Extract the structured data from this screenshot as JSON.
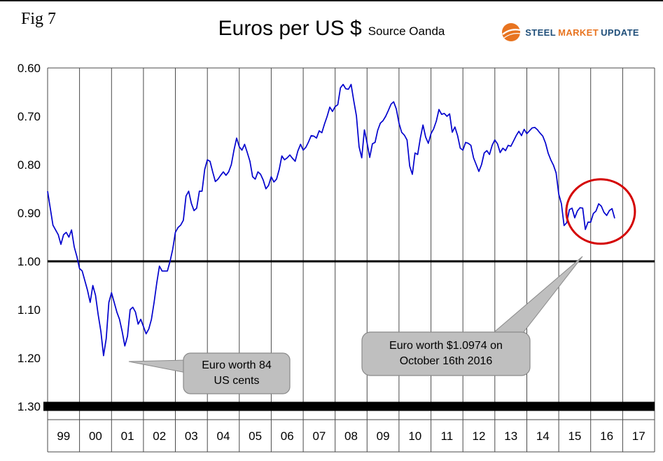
{
  "page": {
    "fig_label": "Fig 7",
    "title": "Euros per US $",
    "subtitle": "Source Oanda",
    "logo": {
      "steel": "STEEL",
      "market": "MARKET",
      "update": "UPDATE",
      "navy": "#1f4e79",
      "orange": "#e87420"
    }
  },
  "chart_data": {
    "type": "line",
    "title": "Euros per US $",
    "subtitle": "Source Oanda",
    "y_axis": {
      "min": 0.6,
      "max": 1.3,
      "inverted_display": true,
      "ticks": [
        "0.60",
        "0.70",
        "0.80",
        "0.90",
        "1.00",
        "1.10",
        "1.20",
        "1.30"
      ]
    },
    "x_axis": {
      "start_year": 1999,
      "end_year": 2018,
      "year_labels": [
        "99",
        "00",
        "01",
        "02",
        "03",
        "04",
        "05",
        "06",
        "07",
        "08",
        "09",
        "10",
        "11",
        "12",
        "13",
        "14",
        "15",
        "16",
        "17"
      ]
    },
    "reference_line_value": 1.0,
    "grid_color": "#4a4a4a",
    "callout_fill": "#bfbfbf",
    "callout_stroke": "#8a8a8a",
    "series": [
      {
        "name": "Euros per US Dollar",
        "color": "#0000cd",
        "start_year": 1999,
        "interval_months": 1,
        "values": [
          0.855,
          0.89,
          0.925,
          0.935,
          0.945,
          0.965,
          0.945,
          0.94,
          0.95,
          0.935,
          0.97,
          0.99,
          1.015,
          1.02,
          1.04,
          1.06,
          1.085,
          1.05,
          1.07,
          1.11,
          1.145,
          1.195,
          1.16,
          1.085,
          1.065,
          1.085,
          1.105,
          1.12,
          1.145,
          1.175,
          1.155,
          1.1,
          1.095,
          1.105,
          1.13,
          1.12,
          1.135,
          1.15,
          1.14,
          1.12,
          1.085,
          1.045,
          1.01,
          1.02,
          1.02,
          1.02,
          1.0,
          0.975,
          0.94,
          0.93,
          0.925,
          0.915,
          0.865,
          0.855,
          0.88,
          0.895,
          0.89,
          0.855,
          0.855,
          0.81,
          0.79,
          0.793,
          0.815,
          0.835,
          0.83,
          0.822,
          0.815,
          0.822,
          0.815,
          0.8,
          0.77,
          0.745,
          0.763,
          0.77,
          0.758,
          0.775,
          0.793,
          0.825,
          0.83,
          0.815,
          0.82,
          0.832,
          0.85,
          0.843,
          0.825,
          0.836,
          0.83,
          0.81,
          0.782,
          0.79,
          0.786,
          0.78,
          0.787,
          0.793,
          0.772,
          0.758,
          0.77,
          0.764,
          0.753,
          0.74,
          0.741,
          0.745,
          0.73,
          0.734,
          0.716,
          0.7,
          0.681,
          0.69,
          0.68,
          0.676,
          0.641,
          0.634,
          0.643,
          0.644,
          0.634,
          0.668,
          0.699,
          0.763,
          0.786,
          0.728,
          0.755,
          0.785,
          0.757,
          0.754,
          0.729,
          0.714,
          0.709,
          0.7,
          0.688,
          0.675,
          0.67,
          0.685,
          0.714,
          0.733,
          0.739,
          0.749,
          0.803,
          0.82,
          0.776,
          0.779,
          0.745,
          0.718,
          0.743,
          0.756,
          0.736,
          0.726,
          0.71,
          0.686,
          0.696,
          0.694,
          0.7,
          0.695,
          0.733,
          0.722,
          0.74,
          0.766,
          0.77,
          0.754,
          0.756,
          0.76,
          0.786,
          0.8,
          0.814,
          0.8,
          0.776,
          0.771,
          0.779,
          0.76,
          0.749,
          0.757,
          0.775,
          0.766,
          0.771,
          0.76,
          0.762,
          0.751,
          0.74,
          0.731,
          0.74,
          0.727,
          0.736,
          0.73,
          0.724,
          0.723,
          0.728,
          0.735,
          0.741,
          0.755,
          0.776,
          0.79,
          0.801,
          0.817,
          0.861,
          0.881,
          0.926,
          0.92,
          0.893,
          0.89,
          0.91,
          0.896,
          0.889,
          0.89,
          0.934,
          0.919,
          0.919,
          0.901,
          0.896,
          0.881,
          0.886,
          0.899,
          0.905,
          0.895,
          0.891,
          0.911
        ]
      }
    ],
    "annotations": [
      {
        "id": "euro-low-callout",
        "text_lines": [
          "Euro worth 84",
          "US cents"
        ],
        "target_year": 2001.0,
        "target_value": 1.2
      },
      {
        "id": "oct-2016-callout",
        "text_lines": [
          "Euro worth $1.0974 on",
          "October 16th 2016"
        ],
        "target_year": 2016.3,
        "target_value": 0.98
      }
    ],
    "highlight": {
      "shape": "ellipse",
      "color": "#d40000",
      "center_year": 2016.31,
      "center_value": 0.897
    }
  }
}
